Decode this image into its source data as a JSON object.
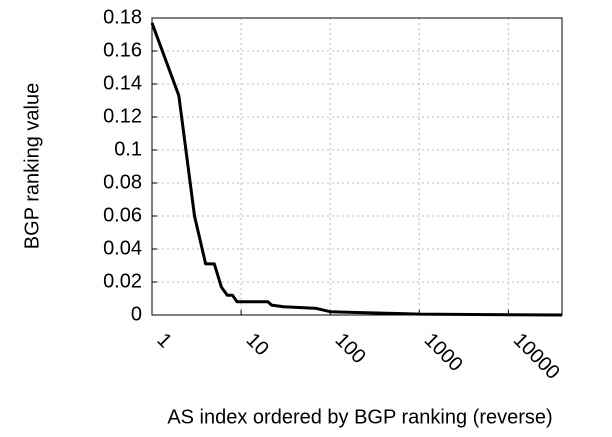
{
  "chart_data": {
    "type": "line",
    "x_label": "AS index ordered by BGP ranking (reverse)",
    "y_label": "BGP ranking value",
    "x": [
      1,
      2,
      3,
      4,
      5,
      6,
      7,
      8,
      9,
      20,
      22,
      30,
      70,
      100,
      200,
      500,
      1000,
      40000
    ],
    "series": [
      {
        "name": "BGP ranking",
        "color": "#000000",
        "values": [
          0.177,
          0.133,
          0.06,
          0.031,
          0.031,
          0.017,
          0.012,
          0.012,
          0.008,
          0.008,
          0.006,
          0.005,
          0.004,
          0.002,
          0.0015,
          0.001,
          0.0005,
          0
        ]
      }
    ],
    "xlim": [
      1,
      40000
    ],
    "xticks": [
      1,
      10,
      100,
      1000,
      10000
    ],
    "xscale": "log",
    "ylim": [
      0,
      0.18
    ],
    "yticks": [
      0,
      0.02,
      0.04,
      0.06,
      0.08,
      0.1,
      0.12,
      0.14,
      0.16,
      0.18
    ],
    "grid": true
  }
}
